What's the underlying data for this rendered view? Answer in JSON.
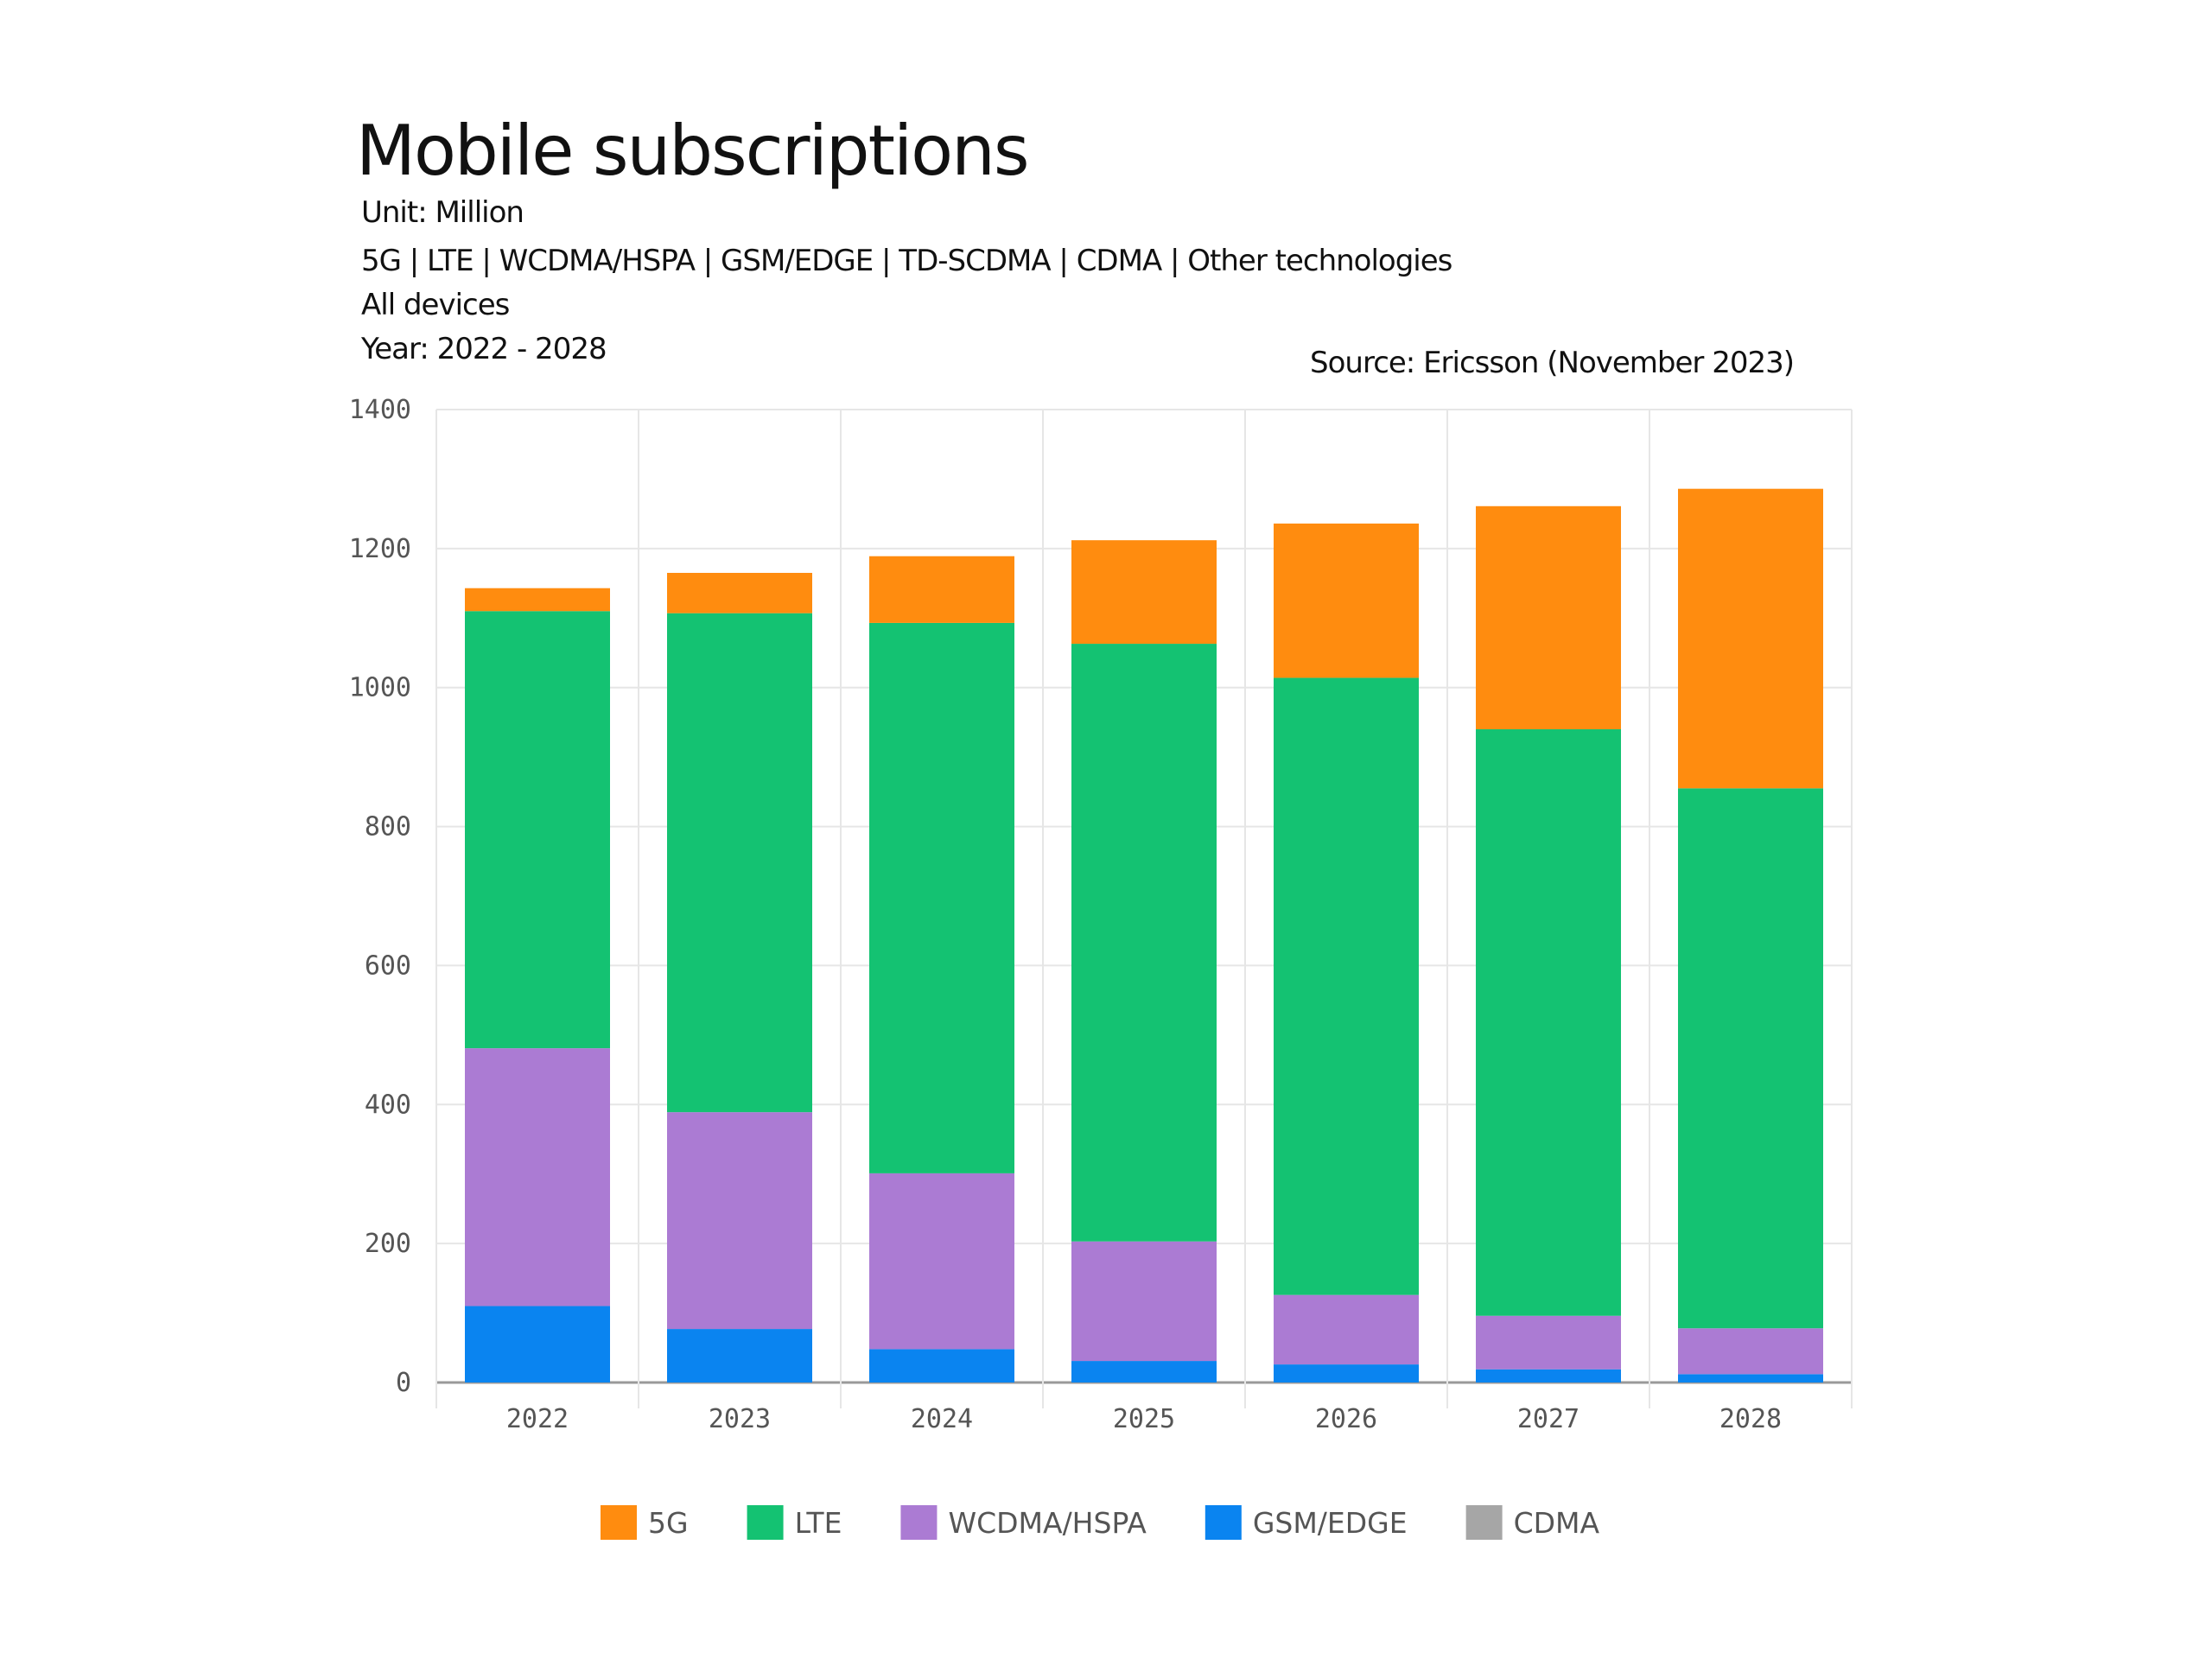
{
  "header": {
    "title": "Mobile subscriptions",
    "unit": "Unit: Million",
    "technologies": "5G | LTE | WCDMA/HSPA | GSM/EDGE | TD-SCDMA | CDMA | Other technologies",
    "devices": "All devices",
    "years": "Year: 2022 - 2028",
    "source": "Source: Ericsson (November 2023)"
  },
  "chart_data": {
    "type": "bar",
    "stacked": true,
    "categories": [
      "2022",
      "2023",
      "2024",
      "2025",
      "2026",
      "2027",
      "2028"
    ],
    "series": [
      {
        "name": "GSM/EDGE",
        "color": "#0a84f0",
        "values": [
          110,
          77,
          48,
          31,
          26,
          19,
          12
        ]
      },
      {
        "name": "WCDMA/HSPA",
        "color": "#ab7bd3",
        "values": [
          371,
          312,
          253,
          172,
          100,
          77,
          66
        ]
      },
      {
        "name": "LTE",
        "color": "#14c272",
        "values": [
          629,
          718,
          792,
          860,
          888,
          844,
          777
        ]
      },
      {
        "name": "5G",
        "color": "#ff8c0f",
        "values": [
          33,
          58,
          96,
          149,
          222,
          321,
          431
        ]
      },
      {
        "name": "CDMA",
        "color": "#a6a6a6",
        "values": [
          0,
          0,
          0,
          0,
          0,
          0,
          0
        ]
      }
    ],
    "legend_order": [
      "5G",
      "LTE",
      "WCDMA/HSPA",
      "GSM/EDGE",
      "CDMA"
    ],
    "yticks": [
      0,
      200,
      400,
      600,
      800,
      1000,
      1200,
      1400
    ],
    "ylim": [
      0,
      1400
    ],
    "grid": true,
    "legend_position": "bottom"
  }
}
